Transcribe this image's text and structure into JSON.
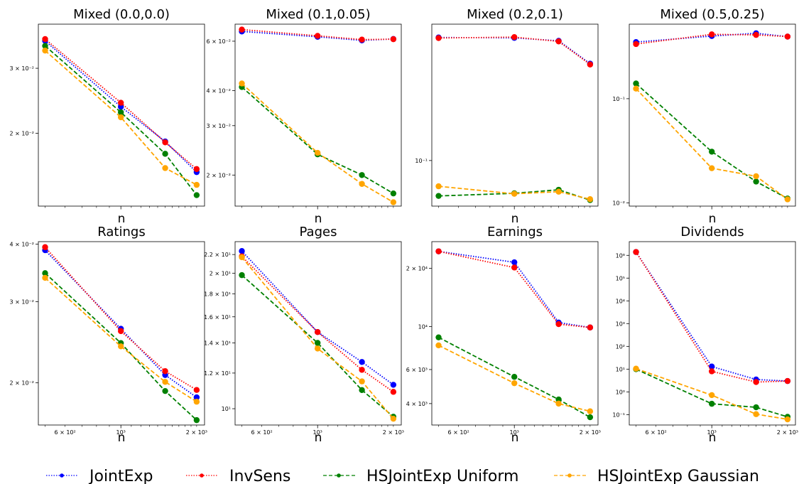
{
  "legend": [
    {
      "name": "JointExp",
      "color": "#0000ff",
      "dash": "dotted"
    },
    {
      "name": "InvSens",
      "color": "#ff0000",
      "dash": "dotted"
    },
    {
      "name": "HSJointExp Uniform",
      "color": "#008000",
      "dash": "dashed"
    },
    {
      "name": "HSJointExp Gaussian",
      "color": "#ffa500",
      "dash": "dashed"
    }
  ],
  "chart_data": [
    {
      "type": "line",
      "title": "Mixed (0.0,0.0)",
      "xlabel": "n",
      "ylabel": "",
      "x": [
        500,
        1000,
        1500,
        2000
      ],
      "xscale": "log",
      "yscale": "log",
      "xlim": [
        470,
        2150
      ],
      "ylim": [
        0.0127,
        0.0395
      ],
      "yticks": [
        {
          "v": 0.03,
          "label": "3 × 10⁻²"
        },
        {
          "v": 0.02,
          "label": "2 × 10⁻²"
        }
      ],
      "xticks": [],
      "series": [
        {
          "name": "JointExp",
          "values": [
            0.0356,
            0.0236,
            0.019,
            0.0157
          ]
        },
        {
          "name": "InvSens",
          "values": [
            0.036,
            0.0242,
            0.0189,
            0.016
          ]
        },
        {
          "name": "HSJointExp Uniform",
          "values": [
            0.0345,
            0.0228,
            0.0176,
            0.0136
          ]
        },
        {
          "name": "HSJointExp Gaussian",
          "values": [
            0.0335,
            0.0221,
            0.0161,
            0.0145
          ]
        }
      ]
    },
    {
      "type": "line",
      "title": "Mixed (0.1,0.05)",
      "xlabel": "n",
      "ylabel": "",
      "x": [
        500,
        1000,
        1500,
        2000
      ],
      "xscale": "log",
      "yscale": "log",
      "xlim": [
        470,
        2150
      ],
      "ylim": [
        0.0155,
        0.069
      ],
      "yticks": [
        {
          "v": 0.06,
          "label": "6 × 10⁻²"
        },
        {
          "v": 0.04,
          "label": "4 × 10⁻²"
        },
        {
          "v": 0.03,
          "label": "3 × 10⁻²"
        },
        {
          "v": 0.02,
          "label": "2 × 10⁻²"
        }
      ],
      "xticks": [],
      "series": [
        {
          "name": "JointExp",
          "values": [
            0.065,
            0.0622,
            0.0604,
            0.0611
          ]
        },
        {
          "name": "InvSens",
          "values": [
            0.066,
            0.0627,
            0.0608,
            0.061
          ]
        },
        {
          "name": "HSJointExp Uniform",
          "values": [
            0.0412,
            0.0237,
            0.02,
            0.0172
          ]
        },
        {
          "name": "HSJointExp Gaussian",
          "values": [
            0.0424,
            0.024,
            0.0186,
            0.016
          ]
        }
      ]
    },
    {
      "type": "line",
      "title": "Mixed (0.2,0.1)",
      "xlabel": "n",
      "ylabel": "",
      "x": [
        500,
        1000,
        1500,
        2000
      ],
      "xscale": "log",
      "yscale": "log",
      "xlim": [
        470,
        2150
      ],
      "ylim": [
        0.058,
        0.51
      ],
      "yticks": [
        {
          "v": 0.1,
          "label": "10⁻¹"
        }
      ],
      "xticks": [],
      "series": [
        {
          "name": "JointExp",
          "values": [
            0.435,
            0.433,
            0.418,
            0.318
          ]
        },
        {
          "name": "InvSens",
          "values": [
            0.432,
            0.437,
            0.415,
            0.315
          ]
        },
        {
          "name": "HSJointExp Uniform",
          "values": [
            0.0655,
            0.0676,
            0.0705,
            0.0623
          ]
        },
        {
          "name": "HSJointExp Gaussian",
          "values": [
            0.0735,
            0.0672,
            0.0689,
            0.063
          ]
        }
      ]
    },
    {
      "type": "line",
      "title": "Mixed (0.5,0.25)",
      "xlabel": "n",
      "ylabel": "",
      "x": [
        500,
        1000,
        1500,
        2000
      ],
      "xscale": "log",
      "yscale": "log",
      "xlim": [
        470,
        2150
      ],
      "ylim": [
        0.0093,
        0.52
      ],
      "yticks": [
        {
          "v": 0.1,
          "label": "10⁻¹"
        },
        {
          "v": 0.01,
          "label": "10⁻²"
        }
      ],
      "xticks": [],
      "series": [
        {
          "name": "JointExp",
          "values": [
            0.35,
            0.4,
            0.425,
            0.395
          ]
        },
        {
          "name": "InvSens",
          "values": [
            0.335,
            0.415,
            0.41,
            0.395
          ]
        },
        {
          "name": "HSJointExp Uniform",
          "values": [
            0.14,
            0.031,
            0.016,
            0.011
          ]
        },
        {
          "name": "HSJointExp Gaussian",
          "values": [
            0.125,
            0.0215,
            0.018,
            0.0108
          ]
        }
      ]
    },
    {
      "type": "line",
      "title": "Ratings",
      "xlabel": "n",
      "ylabel": "",
      "x": [
        500,
        1000,
        1500,
        2000
      ],
      "xscale": "log",
      "yscale": "log",
      "xlim": [
        470,
        2150
      ],
      "ylim": [
        0.0162,
        0.0405
      ],
      "yticks": [
        {
          "v": 0.04,
          "label": "4 × 10⁻²"
        },
        {
          "v": 0.03,
          "label": "3 × 10⁻²"
        },
        {
          "v": 0.02,
          "label": "2 × 10⁻²"
        }
      ],
      "xticks": [
        {
          "v": 600,
          "label": "6 × 10²"
        },
        {
          "v": 1000,
          "label": "10³"
        },
        {
          "v": 2000,
          "label": "2 × 10³"
        }
      ],
      "series": [
        {
          "name": "JointExp",
          "values": [
            0.0388,
            0.0262,
            0.0208,
            0.0186
          ]
        },
        {
          "name": "InvSens",
          "values": [
            0.0394,
            0.0259,
            0.0212,
            0.0193
          ]
        },
        {
          "name": "HSJointExp Uniform",
          "values": [
            0.0346,
            0.0244,
            0.0192,
            0.0166
          ]
        },
        {
          "name": "HSJointExp Gaussian",
          "values": [
            0.0338,
            0.024,
            0.0201,
            0.0182
          ]
        }
      ]
    },
    {
      "type": "line",
      "title": "Pages",
      "xlabel": "n",
      "ylabel": "",
      "x": [
        500,
        1000,
        1500,
        2000
      ],
      "xscale": "log",
      "yscale": "log",
      "xlim": [
        470,
        2150
      ],
      "ylim": [
        9.2,
        23.5
      ],
      "yticks": [
        {
          "v": 22,
          "label": "2.2 × 10¹"
        },
        {
          "v": 20,
          "label": "2 × 10¹"
        },
        {
          "v": 18,
          "label": "1.8 × 10¹"
        },
        {
          "v": 16,
          "label": "1.6 × 10¹"
        },
        {
          "v": 14,
          "label": "1.4 × 10¹"
        },
        {
          "v": 12,
          "label": "1.2 × 10¹"
        },
        {
          "v": 10,
          "label": "10¹"
        }
      ],
      "xticks": [
        {
          "v": 600,
          "label": "6 × 10²"
        },
        {
          "v": 1000,
          "label": "10³"
        },
        {
          "v": 2000,
          "label": "2 × 10³"
        }
      ],
      "series": [
        {
          "name": "JointExp",
          "values": [
            22.4,
            14.8,
            12.7,
            11.3
          ]
        },
        {
          "name": "InvSens",
          "values": [
            21.8,
            14.8,
            12.2,
            10.9
          ]
        },
        {
          "name": "HSJointExp Uniform",
          "values": [
            19.8,
            14.0,
            11.0,
            9.6
          ]
        },
        {
          "name": "HSJointExp Gaussian",
          "values": [
            21.7,
            13.6,
            11.5,
            9.5
          ]
        }
      ]
    },
    {
      "type": "line",
      "title": "Earnings",
      "xlabel": "n",
      "ylabel": "",
      "x": [
        500,
        1000,
        1500,
        2000
      ],
      "xscale": "log",
      "yscale": "log",
      "xlim": [
        470,
        2150
      ],
      "ylim": [
        3100,
        27500
      ],
      "yticks": [
        {
          "v": 20000,
          "label": "2 × 10⁴"
        },
        {
          "v": 10000,
          "label": "10⁴"
        },
        {
          "v": 6000,
          "label": "6 × 10³"
        },
        {
          "v": 4000,
          "label": "4 × 10³"
        }
      ],
      "xticks": [
        {
          "v": 600,
          "label": "6 × 10²"
        },
        {
          "v": 1000,
          "label": "10³"
        },
        {
          "v": 2000,
          "label": "2 × 10³"
        }
      ],
      "series": [
        {
          "name": "JointExp",
          "values": [
            24500,
            21500,
            10500,
            9900
          ]
        },
        {
          "name": "InvSens",
          "values": [
            24500,
            20200,
            10300,
            9900
          ]
        },
        {
          "name": "HSJointExp Uniform",
          "values": [
            8800,
            5500,
            4200,
            3400
          ]
        },
        {
          "name": "HSJointExp Gaussian",
          "values": [
            8000,
            5100,
            4000,
            3650
          ]
        }
      ]
    },
    {
      "type": "line",
      "title": "Dividends",
      "xlabel": "n",
      "ylabel": "",
      "x": [
        500,
        1000,
        1500,
        2000
      ],
      "xscale": "log",
      "yscale": "log",
      "xlim": [
        470,
        2150
      ],
      "ylim": [
        0.035,
        4000000
      ],
      "yticks": [
        {
          "v": 1000000,
          "label": "10⁶"
        },
        {
          "v": 100000,
          "label": "10⁵"
        },
        {
          "v": 10000,
          "label": "10⁴"
        },
        {
          "v": 1000,
          "label": "10³"
        },
        {
          "v": 100,
          "label": "10²"
        },
        {
          "v": 10,
          "label": "10¹"
        },
        {
          "v": 1,
          "label": "10⁰"
        },
        {
          "v": 0.1,
          "label": "10⁻¹"
        }
      ],
      "xticks": [
        {
          "v": 600,
          "label": "6 × 10²"
        },
        {
          "v": 1000,
          "label": "10³"
        },
        {
          "v": 2000,
          "label": "2 × 10³"
        }
      ],
      "series": [
        {
          "name": "JointExp",
          "values": [
            1400000,
            13,
            3.5,
            3.0
          ]
        },
        {
          "name": "InvSens",
          "values": [
            1400000,
            8.0,
            2.7,
            3.0
          ]
        },
        {
          "name": "HSJointExp Uniform",
          "values": [
            10.0,
            0.3,
            0.21,
            0.08
          ]
        },
        {
          "name": "HSJointExp Gaussian",
          "values": [
            10.5,
            0.72,
            0.105,
            0.062
          ]
        }
      ]
    }
  ]
}
